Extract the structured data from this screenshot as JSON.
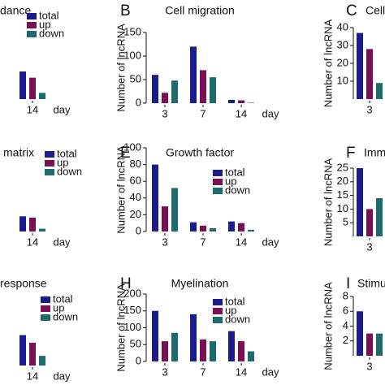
{
  "chart_data": [
    {
      "type": "bar",
      "title": "dance",
      "categories": [
        "14"
      ],
      "xlabel": "day",
      "ylim": [
        0,
        100
      ],
      "legend": true,
      "series": [
        {
          "name": "total",
          "color": "#1c1c8e",
          "values": [
            40
          ]
        },
        {
          "name": "up",
          "color": "#7b0f55",
          "values": [
            31
          ]
        },
        {
          "name": "down",
          "color": "#1d6b6e",
          "values": [
            9
          ]
        }
      ]
    },
    {
      "type": "bar",
      "panel_label": "B",
      "title": "Cell migration",
      "ylabel": "Number of lncRNA",
      "categories": [
        "3",
        "7",
        "14"
      ],
      "xlabel": "day",
      "ylim": [
        0,
        150
      ],
      "yticks": [
        0,
        50,
        100,
        150
      ],
      "legend": false,
      "series": [
        {
          "name": "total",
          "color": "#1c1c8e",
          "values": [
            60,
            120,
            7
          ]
        },
        {
          "name": "up",
          "color": "#7b0f55",
          "values": [
            22,
            70,
            6
          ]
        },
        {
          "name": "down",
          "color": "#1d6b6e",
          "values": [
            48,
            55,
            1
          ]
        }
      ]
    },
    {
      "type": "bar",
      "panel_label": "C",
      "title": "Cell",
      "ylabel": "Number of lncRNA",
      "categories": [
        "3"
      ],
      "ylim": [
        0,
        40
      ],
      "yticks": [
        10,
        20,
        30,
        40
      ],
      "legend": false,
      "series": [
        {
          "name": "total",
          "color": "#1c1c8e",
          "values": [
            37
          ]
        },
        {
          "name": "up",
          "color": "#7b0f55",
          "values": [
            28
          ]
        },
        {
          "name": "down",
          "color": "#1d6b6e",
          "values": [
            9
          ]
        }
      ]
    },
    {
      "type": "bar",
      "title": "matrix",
      "categories": [
        "14"
      ],
      "xlabel": "day",
      "ylim": [
        0,
        100
      ],
      "legend": true,
      "series": [
        {
          "name": "total",
          "color": "#1c1c8e",
          "values": [
            22
          ]
        },
        {
          "name": "up",
          "color": "#7b0f55",
          "values": [
            20
          ]
        },
        {
          "name": "down",
          "color": "#1d6b6e",
          "values": [
            4
          ]
        }
      ]
    },
    {
      "type": "bar",
      "panel_label": "E",
      "title": "Growth factor",
      "ylabel": "Number of lncRNA",
      "categories": [
        "3",
        "7",
        "14"
      ],
      "xlabel": "day",
      "ylim": [
        0,
        100
      ],
      "yticks": [
        0,
        20,
        40,
        60,
        80,
        100
      ],
      "legend": true,
      "series": [
        {
          "name": "total",
          "color": "#1c1c8e",
          "values": [
            80,
            11,
            12
          ]
        },
        {
          "name": "up",
          "color": "#7b0f55",
          "values": [
            30,
            7,
            10
          ]
        },
        {
          "name": "down",
          "color": "#1d6b6e",
          "values": [
            52,
            4,
            2
          ]
        }
      ]
    },
    {
      "type": "bar",
      "panel_label": "F",
      "title": "Imm",
      "ylabel": "Number of lncRNA",
      "categories": [
        "3"
      ],
      "ylim": [
        0,
        25
      ],
      "yticks": [
        5,
        10,
        15,
        20,
        25
      ],
      "legend": false,
      "series": [
        {
          "name": "total",
          "color": "#1c1c8e",
          "values": [
            25
          ]
        },
        {
          "name": "up",
          "color": "#7b0f55",
          "values": [
            10
          ]
        },
        {
          "name": "down",
          "color": "#1d6b6e",
          "values": [
            14
          ]
        }
      ]
    },
    {
      "type": "bar",
      "title": "response",
      "categories": [
        "14"
      ],
      "xlabel": "day",
      "ylim": [
        0,
        100
      ],
      "legend": true,
      "series": [
        {
          "name": "total",
          "color": "#1c1c8e",
          "values": [
            44
          ]
        },
        {
          "name": "up",
          "color": "#7b0f55",
          "values": [
            33
          ]
        },
        {
          "name": "down",
          "color": "#1d6b6e",
          "values": [
            14
          ]
        }
      ]
    },
    {
      "type": "bar",
      "panel_label": "H",
      "title": "Myelination",
      "ylabel": "Number of lncRNA",
      "categories": [
        "3",
        "7",
        "14"
      ],
      "xlabel": "day",
      "ylim": [
        0,
        200
      ],
      "yticks": [
        0,
        50,
        100,
        150,
        200
      ],
      "legend": true,
      "series": [
        {
          "name": "total",
          "color": "#1c1c8e",
          "values": [
            150,
            140,
            90
          ]
        },
        {
          "name": "up",
          "color": "#7b0f55",
          "values": [
            60,
            65,
            60
          ]
        },
        {
          "name": "down",
          "color": "#1d6b6e",
          "values": [
            85,
            60,
            30
          ]
        }
      ]
    },
    {
      "type": "bar",
      "panel_label": "I",
      "title": "Stimu",
      "ylabel": "Number of lncRNA",
      "categories": [
        "3"
      ],
      "ylim": [
        0,
        8
      ],
      "yticks": [
        2,
        4,
        6,
        8
      ],
      "legend": false,
      "series": [
        {
          "name": "total",
          "color": "#1c1c8e",
          "values": [
            6
          ]
        },
        {
          "name": "up",
          "color": "#7b0f55",
          "values": [
            3
          ]
        },
        {
          "name": "down",
          "color": "#1d6b6e",
          "values": [
            3
          ]
        }
      ]
    }
  ]
}
